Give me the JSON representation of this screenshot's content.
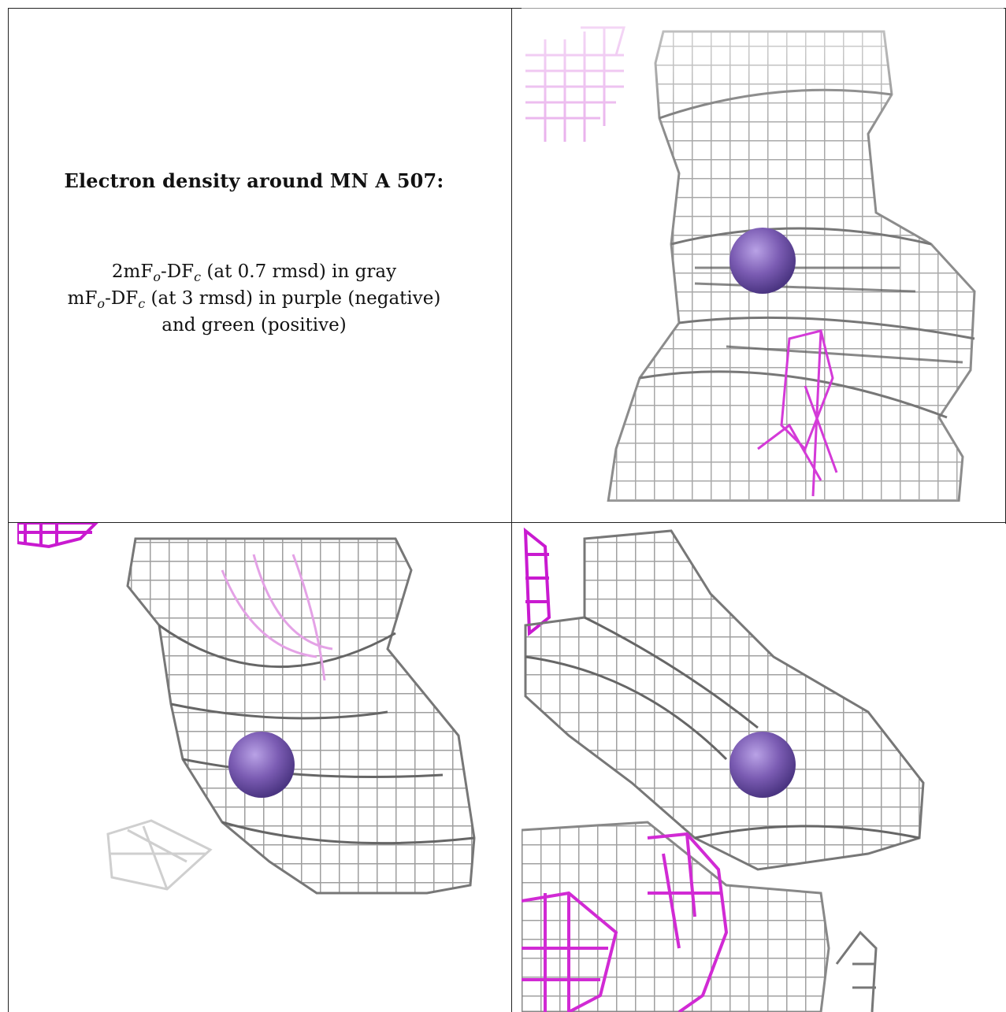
{
  "caption": {
    "title": "Electron density around MN A 507:",
    "line1": {
      "a": "2mF",
      "sa": "o",
      "b": "-DF",
      "sb": "c",
      "c": " (at 0.7 rmsd) in gray"
    },
    "line2": {
      "a": "mF",
      "sa": "o",
      "b": "-DF",
      "sb": "c",
      "c": " (at 3 rmsd) in purple (negative)"
    },
    "line3": "and green (positive)"
  },
  "panels": [
    {
      "id": "view-1",
      "atom": "MN A 507"
    },
    {
      "id": "view-2",
      "atom": "MN A 507"
    },
    {
      "id": "view-3",
      "atom": "MN A 507"
    }
  ],
  "colors": {
    "mesh_gray": "#9a9a9a",
    "mesh_dark": "#555555",
    "mesh_negative": "#e030e0",
    "atom": "#7b5cb3"
  }
}
